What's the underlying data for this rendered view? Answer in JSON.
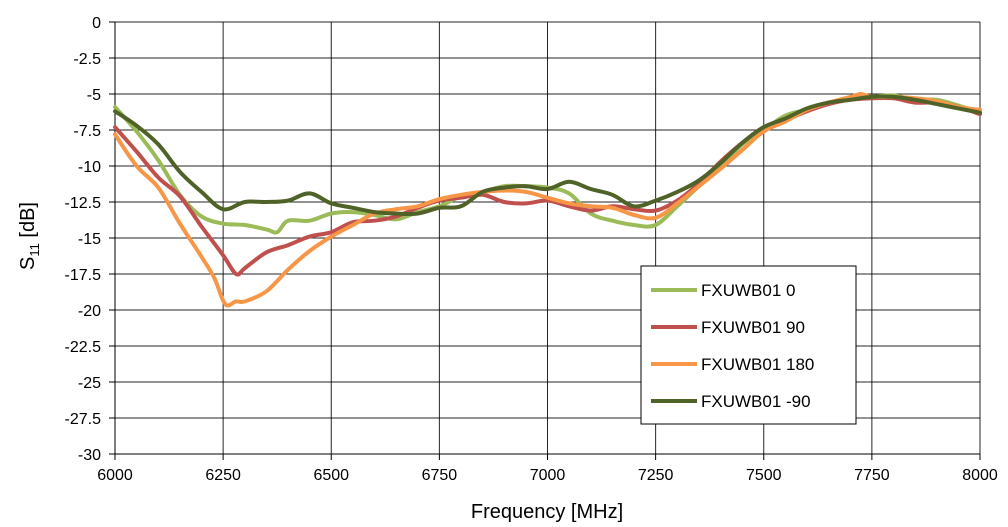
{
  "chart_data": {
    "type": "line",
    "xlabel": "Frequency [MHz]",
    "ylabel_main": "S",
    "ylabel_sub": "11",
    "ylabel_unit": " [dB]",
    "xlim": [
      6000,
      8000
    ],
    "ylim": [
      -30,
      0
    ],
    "xticks": [
      6000,
      6250,
      6500,
      6750,
      7000,
      7250,
      7500,
      7750,
      8000
    ],
    "yticks": [
      0,
      -2.5,
      -5,
      -7.5,
      -10,
      -12.5,
      -15,
      -17.5,
      -20,
      -22.5,
      -25,
      -27.5,
      -30
    ],
    "ytick_labels": [
      "0",
      "-2.5",
      "-5",
      "-7.5",
      "-10",
      "-12.5",
      "-15",
      "-17.5",
      "-20",
      "-22.5",
      "-25",
      "-27.5",
      "-30"
    ],
    "grid": true,
    "legend_position": "bottom-right",
    "series": [
      {
        "name": "FXUWB01 0",
        "color": "#9BBB59",
        "points": [
          [
            6000,
            -5.9
          ],
          [
            6050,
            -7.6
          ],
          [
            6100,
            -9.6
          ],
          [
            6150,
            -12
          ],
          [
            6200,
            -13.5
          ],
          [
            6250,
            -14
          ],
          [
            6300,
            -14.1
          ],
          [
            6350,
            -14.4
          ],
          [
            6375,
            -14.6
          ],
          [
            6400,
            -13.8
          ],
          [
            6450,
            -13.8
          ],
          [
            6500,
            -13.3
          ],
          [
            6550,
            -13.2
          ],
          [
            6600,
            -13.4
          ],
          [
            6650,
            -13.7
          ],
          [
            6700,
            -13.2
          ],
          [
            6750,
            -12.8
          ],
          [
            6800,
            -12.1
          ],
          [
            6850,
            -11.8
          ],
          [
            6900,
            -11.4
          ],
          [
            6950,
            -11.4
          ],
          [
            7000,
            -11.5
          ],
          [
            7050,
            -11.9
          ],
          [
            7100,
            -13.3
          ],
          [
            7150,
            -13.8
          ],
          [
            7200,
            -14.1
          ],
          [
            7250,
            -14.1
          ],
          [
            7300,
            -12.8
          ],
          [
            7350,
            -11.4
          ],
          [
            7400,
            -10.1
          ],
          [
            7450,
            -8.5
          ],
          [
            7500,
            -7.5
          ],
          [
            7550,
            -6.5
          ],
          [
            7600,
            -6.1
          ],
          [
            7650,
            -5.6
          ],
          [
            7700,
            -5.3
          ],
          [
            7750,
            -5.2
          ],
          [
            7800,
            -5.1
          ],
          [
            7850,
            -5.4
          ],
          [
            7900,
            -5.4
          ],
          [
            7950,
            -5.8
          ],
          [
            8000,
            -6.3
          ]
        ]
      },
      {
        "name": "FXUWB01 90",
        "color": "#C0504D",
        "points": [
          [
            6000,
            -7.3
          ],
          [
            6050,
            -9
          ],
          [
            6100,
            -10.8
          ],
          [
            6150,
            -12.1
          ],
          [
            6200,
            -14.2
          ],
          [
            6250,
            -16.2
          ],
          [
            6280,
            -17.5
          ],
          [
            6300,
            -17.1
          ],
          [
            6350,
            -16
          ],
          [
            6400,
            -15.5
          ],
          [
            6450,
            -14.9
          ],
          [
            6500,
            -14.6
          ],
          [
            6550,
            -13.9
          ],
          [
            6600,
            -13.8
          ],
          [
            6650,
            -13.5
          ],
          [
            6700,
            -12.9
          ],
          [
            6750,
            -12.4
          ],
          [
            6800,
            -12.2
          ],
          [
            6850,
            -12
          ],
          [
            6900,
            -12.5
          ],
          [
            6950,
            -12.6
          ],
          [
            7000,
            -12.4
          ],
          [
            7050,
            -12.8
          ],
          [
            7100,
            -13.1
          ],
          [
            7150,
            -12.8
          ],
          [
            7200,
            -13
          ],
          [
            7250,
            -13.1
          ],
          [
            7300,
            -12.4
          ],
          [
            7350,
            -11.2
          ],
          [
            7400,
            -9.7
          ],
          [
            7450,
            -8.4
          ],
          [
            7500,
            -7.3
          ],
          [
            7550,
            -6.8
          ],
          [
            7600,
            -6.2
          ],
          [
            7650,
            -5.7
          ],
          [
            7700,
            -5.4
          ],
          [
            7750,
            -5.3
          ],
          [
            7800,
            -5.3
          ],
          [
            7850,
            -5.6
          ],
          [
            7900,
            -5.6
          ],
          [
            7950,
            -5.9
          ],
          [
            8000,
            -6.4
          ]
        ]
      },
      {
        "name": "FXUWB01 180",
        "color": "#F79646",
        "points": [
          [
            6000,
            -7.8
          ],
          [
            6050,
            -10
          ],
          [
            6100,
            -11.5
          ],
          [
            6150,
            -14
          ],
          [
            6200,
            -16.3
          ],
          [
            6230,
            -17.8
          ],
          [
            6255,
            -19.6
          ],
          [
            6280,
            -19.4
          ],
          [
            6300,
            -19.4
          ],
          [
            6350,
            -18.7
          ],
          [
            6400,
            -17.2
          ],
          [
            6450,
            -15.9
          ],
          [
            6500,
            -14.9
          ],
          [
            6550,
            -14.1
          ],
          [
            6600,
            -13.3
          ],
          [
            6650,
            -13
          ],
          [
            6700,
            -12.8
          ],
          [
            6750,
            -12.3
          ],
          [
            6800,
            -12
          ],
          [
            6850,
            -11.8
          ],
          [
            6900,
            -11.7
          ],
          [
            6950,
            -11.8
          ],
          [
            7000,
            -12.2
          ],
          [
            7050,
            -12.6
          ],
          [
            7100,
            -12.8
          ],
          [
            7150,
            -12.9
          ],
          [
            7200,
            -13.4
          ],
          [
            7250,
            -13.6
          ],
          [
            7300,
            -12.6
          ],
          [
            7350,
            -11.4
          ],
          [
            7400,
            -10.2
          ],
          [
            7450,
            -8.9
          ],
          [
            7500,
            -7.6
          ],
          [
            7550,
            -6.9
          ],
          [
            7600,
            -6.1
          ],
          [
            7650,
            -5.6
          ],
          [
            7700,
            -5.2
          ],
          [
            7725,
            -5
          ],
          [
            7750,
            -5.2
          ],
          [
            7800,
            -5.2
          ],
          [
            7850,
            -5.3
          ],
          [
            7900,
            -5.5
          ],
          [
            7950,
            -5.9
          ],
          [
            8000,
            -6.1
          ]
        ]
      },
      {
        "name": "FXUWB01 -90",
        "color": "#4F6228",
        "points": [
          [
            6000,
            -6.2
          ],
          [
            6050,
            -7.2
          ],
          [
            6100,
            -8.5
          ],
          [
            6150,
            -10.4
          ],
          [
            6200,
            -11.8
          ],
          [
            6250,
            -13
          ],
          [
            6300,
            -12.5
          ],
          [
            6350,
            -12.5
          ],
          [
            6400,
            -12.4
          ],
          [
            6450,
            -11.9
          ],
          [
            6500,
            -12.6
          ],
          [
            6550,
            -12.9
          ],
          [
            6600,
            -13.2
          ],
          [
            6650,
            -13.3
          ],
          [
            6700,
            -13.3
          ],
          [
            6750,
            -12.9
          ],
          [
            6800,
            -12.8
          ],
          [
            6850,
            -11.8
          ],
          [
            6900,
            -11.5
          ],
          [
            6950,
            -11.4
          ],
          [
            7000,
            -11.6
          ],
          [
            7050,
            -11.1
          ],
          [
            7100,
            -11.6
          ],
          [
            7150,
            -12
          ],
          [
            7200,
            -12.8
          ],
          [
            7250,
            -12.4
          ],
          [
            7300,
            -11.8
          ],
          [
            7350,
            -11
          ],
          [
            7400,
            -9.8
          ],
          [
            7450,
            -8.4
          ],
          [
            7500,
            -7.3
          ],
          [
            7550,
            -6.7
          ],
          [
            7600,
            -6
          ],
          [
            7650,
            -5.6
          ],
          [
            7700,
            -5.4
          ],
          [
            7750,
            -5.2
          ],
          [
            7800,
            -5.2
          ],
          [
            7850,
            -5.4
          ],
          [
            7900,
            -5.7
          ],
          [
            7950,
            -6
          ],
          [
            8000,
            -6.3
          ]
        ]
      }
    ]
  }
}
